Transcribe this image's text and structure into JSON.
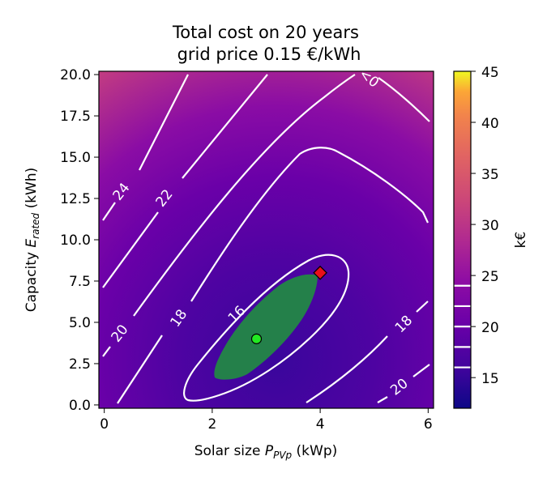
{
  "chart_data": {
    "type": "heatmap",
    "title_line1": "Total cost on 20 years",
    "title_line2": "grid price 0.15 €/kWh",
    "xlabel_main": "Solar size ",
    "xlabel_sym": "P",
    "xlabel_sub": "PVp",
    "xlabel_unit": " (kWp)",
    "ylabel_main": "Capacity ",
    "ylabel_sym": "E",
    "ylabel_sub": "rated",
    "ylabel_unit": " (kWh)",
    "xlim": [
      -0.1,
      6.1
    ],
    "ylim": [
      -0.2,
      20.2
    ],
    "x_ticks": [
      0,
      2,
      4,
      6
    ],
    "x_tick_labels": [
      "0",
      "2",
      "4",
      "6"
    ],
    "y_ticks": [
      0.0,
      2.5,
      5.0,
      7.5,
      10.0,
      12.5,
      15.0,
      17.5,
      20.0
    ],
    "y_tick_labels": [
      "0.0",
      "2.5",
      "5.0",
      "7.5",
      "10.0",
      "12.5",
      "15.0",
      "17.5",
      "20.0"
    ],
    "colorbar": {
      "label": "k€",
      "range": [
        12,
        45
      ],
      "ticks": [
        15,
        20,
        25,
        30,
        35,
        40,
        45
      ],
      "tick_labels": [
        "15",
        "20",
        "25",
        "30",
        "35",
        "40",
        "45"
      ],
      "contour_levels": [
        16,
        18,
        20,
        22,
        24
      ]
    },
    "contour_labels": [
      "<0",
      "24",
      "22",
      "20",
      "18",
      "16",
      "18",
      "20"
    ],
    "markers": [
      {
        "name": "green-point",
        "x": 2.82,
        "y": 4.0,
        "color": "#22e822",
        "shape": "circle"
      },
      {
        "name": "red-diamond",
        "x": 4.0,
        "y": 8.0,
        "color": "#e8101a",
        "shape": "diamond"
      }
    ],
    "colors": {
      "contour": "#ffffff",
      "region": "#24804a"
    }
  }
}
